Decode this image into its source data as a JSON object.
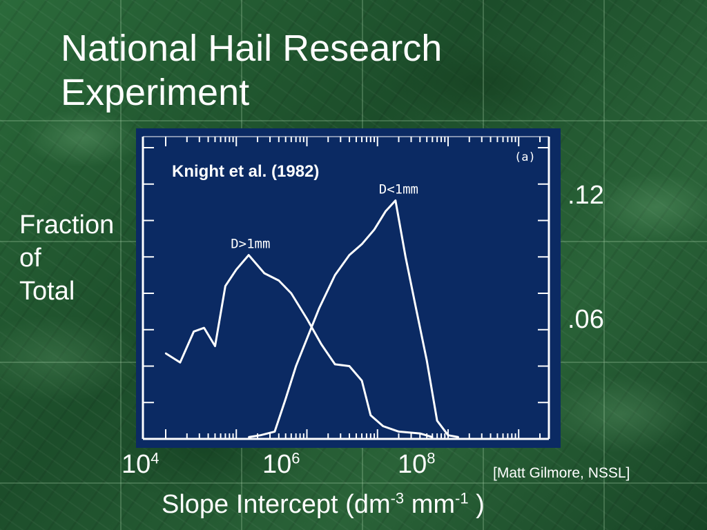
{
  "slide": {
    "title_line1": "National Hail Research",
    "title_line2": "Experiment",
    "ylabel_line1": "Fraction",
    "ylabel_line2": "of",
    "ylabel_line3": "Total",
    "credit": "[Matt Gilmore, NSSL]",
    "xlabel": {
      "base": "Slope Intercept (dm",
      "exp1": "-3",
      "mid": " mm",
      "exp2": "-1",
      "end": " )"
    }
  },
  "colors": {
    "background": "#1f5530",
    "plot_background": "#0b2a63",
    "plot_ink": "#ffffff",
    "text": "#ffffff"
  },
  "chart_data": {
    "type": "line",
    "title": "",
    "inset_citation": "Knight et al. (1982)",
    "panel_label": "(a)",
    "xlabel": "Slope Intercept (dm-3 mm-1 )",
    "ylabel": "Fraction of Total",
    "x_scale": "log10",
    "xlim": [
      10000,
      2000000000
    ],
    "ylim": [
      0,
      0.16
    ],
    "x_ticks": [
      {
        "base": "10",
        "exp": "4",
        "value": 10000
      },
      {
        "base": "10",
        "exp": "6",
        "value": 1000000
      },
      {
        "base": "10",
        "exp": "8",
        "value": 100000000
      }
    ],
    "y_ticks": [
      {
        "label": ".12",
        "value": 0.12
      },
      {
        "label": ".06",
        "value": 0.06
      }
    ],
    "grid": false,
    "series": [
      {
        "name": "D>1mm",
        "points": [
          [
            10000.0,
            0.047
          ],
          [
            16000.0,
            0.042
          ],
          [
            25000.0,
            0.059
          ],
          [
            35000.0,
            0.061
          ],
          [
            50000.0,
            0.051
          ],
          [
            70000.0,
            0.084
          ],
          [
            100000.0,
            0.093
          ],
          [
            150000.0,
            0.101
          ],
          [
            250000.0,
            0.091
          ],
          [
            400000.0,
            0.087
          ],
          [
            600000.0,
            0.08
          ],
          [
            1000000.0,
            0.066
          ],
          [
            1600000.0,
            0.052
          ],
          [
            2500000.0,
            0.041
          ],
          [
            4000000.0,
            0.04
          ],
          [
            6000000.0,
            0.032
          ],
          [
            8000000.0,
            0.013
          ],
          [
            12000000.0,
            0.007
          ],
          [
            20000000.0,
            0.004
          ],
          [
            40000000.0,
            0.003
          ],
          [
            60000000.0,
            0.001
          ]
        ]
      },
      {
        "name": "D<1mm",
        "points": [
          [
            150000.0,
            0.001
          ],
          [
            220000.0,
            0.002
          ],
          [
            350000.0,
            0.004
          ],
          [
            500000.0,
            0.022
          ],
          [
            700000.0,
            0.04
          ],
          [
            1000000.0,
            0.055
          ],
          [
            1500000.0,
            0.072
          ],
          [
            2500000.0,
            0.09
          ],
          [
            4000000.0,
            0.101
          ],
          [
            6000000.0,
            0.107
          ],
          [
            9000000.0,
            0.115
          ],
          [
            13000000.0,
            0.125
          ],
          [
            18000000.0,
            0.131
          ],
          [
            25000000.0,
            0.1
          ],
          [
            35000000.0,
            0.072
          ],
          [
            50000000.0,
            0.043
          ],
          [
            70000000.0,
            0.01
          ],
          [
            100000000.0,
            0.002
          ],
          [
            140000000.0,
            0.001
          ]
        ]
      }
    ]
  }
}
